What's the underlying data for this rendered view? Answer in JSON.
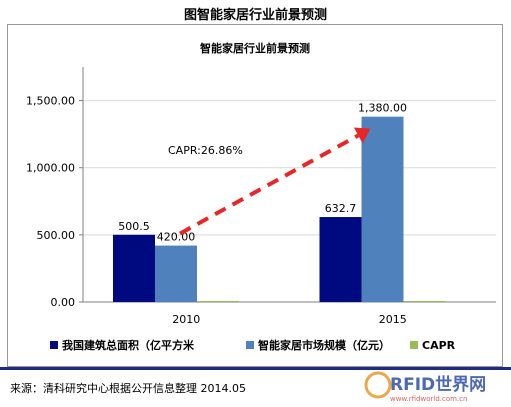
{
  "header": {
    "title": "图智能家居行业前景预测"
  },
  "chart_data": {
    "type": "bar",
    "title": "智能家居行业前景预测",
    "categories": [
      "2010",
      "2015"
    ],
    "series": [
      {
        "name": "我国建筑总面积（亿平方米",
        "values": [
          500.5,
          632.7
        ],
        "labels": [
          "500.5",
          "632.7"
        ],
        "color": "#000a80"
      },
      {
        "name": "智能家居市场规模（亿元）",
        "values": [
          420.0,
          1380.0
        ],
        "labels": [
          "420.00",
          "1,380.00"
        ],
        "color": "#4f81bd"
      },
      {
        "name": "CAPR",
        "values": [
          0,
          0
        ],
        "labels": [
          "",
          ""
        ],
        "color": "#9bbb59"
      }
    ],
    "yticks": [
      "0.00",
      "500.00",
      "1,000.00",
      "1,500.00"
    ],
    "ytick_values": [
      0,
      500,
      1000,
      1500
    ],
    "ylim": [
      0,
      1750
    ],
    "annotation": "CAPR:26.86%",
    "arrow_color": "#e8262a",
    "legend_position": "bottom"
  },
  "footer": {
    "source": "来源：清科研究中心根据公开信息整理 2014.05",
    "watermark_main": "RFID世界网",
    "watermark_url": "www.rfidworld.com.cn"
  }
}
